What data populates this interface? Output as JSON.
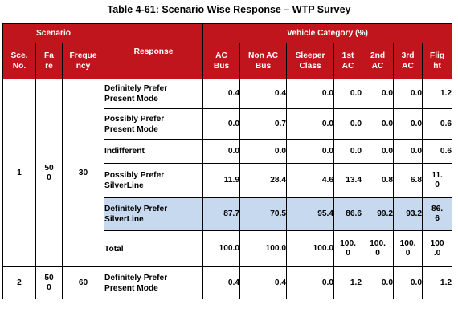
{
  "caption": "Table 4-61: Scenario Wise Response – WTP Survey",
  "colors": {
    "header_bg": "#c0151c",
    "header_text": "#ffffff",
    "highlight_row": "#c6d9ef",
    "border": "#000000"
  },
  "header": {
    "scenario": "Scenario",
    "response": "Response",
    "vehicle_category": "Vehicle Category (%)",
    "sce_no": "Sce.\nNo.",
    "fare": "Fa\nre",
    "frequency": "Freque\nncy",
    "categories": [
      "AC\nBus",
      "Non AC\nBus",
      "Sleeper\nClass",
      "1st\nAC",
      "2nd\nAC",
      "3rd\nAC",
      "Flig\nht"
    ]
  },
  "scenarios": [
    {
      "sce_no": "1",
      "fare": "50\n0",
      "frequency": "30",
      "rows": [
        {
          "response": "Definitely Prefer\nPresent Mode",
          "values": [
            "0.4",
            "0.4",
            "0.0",
            "0.0",
            "0.0",
            "0.0",
            "1.2"
          ]
        },
        {
          "response": "Possibly Prefer\nPresent Mode",
          "values": [
            "0.0",
            "0.7",
            "0.0",
            "0.0",
            "0.0",
            "0.0",
            "0.6"
          ]
        },
        {
          "response": "Indifferent",
          "values": [
            "0.0",
            "0.0",
            "0.0",
            "0.0",
            "0.0",
            "0.0",
            "0.6"
          ]
        },
        {
          "response": "Possibly Prefer\nSilverLine",
          "values": [
            "11.9",
            "28.4",
            "4.6",
            "13.4",
            "0.8",
            "6.8",
            "11.\n0"
          ]
        },
        {
          "response": "Definitely Prefer\nSilverLine",
          "values": [
            "87.7",
            "70.5",
            "95.4",
            "86.6",
            "99.2",
            "93.2",
            "86.\n6"
          ],
          "highlight": true
        },
        {
          "response": "Total",
          "values": [
            "100.0",
            "100.0",
            "100.0",
            "100.\n0",
            "100.\n0",
            "100.\n0",
            "100\n.0"
          ]
        }
      ]
    },
    {
      "sce_no": "2",
      "fare": "50\n0",
      "frequency": "60",
      "rows": [
        {
          "response": "Definitely Prefer\nPresent Mode",
          "values": [
            "0.4",
            "0.4",
            "0.0",
            "1.2",
            "0.0",
            "0.0",
            "1.2"
          ]
        }
      ]
    }
  ]
}
